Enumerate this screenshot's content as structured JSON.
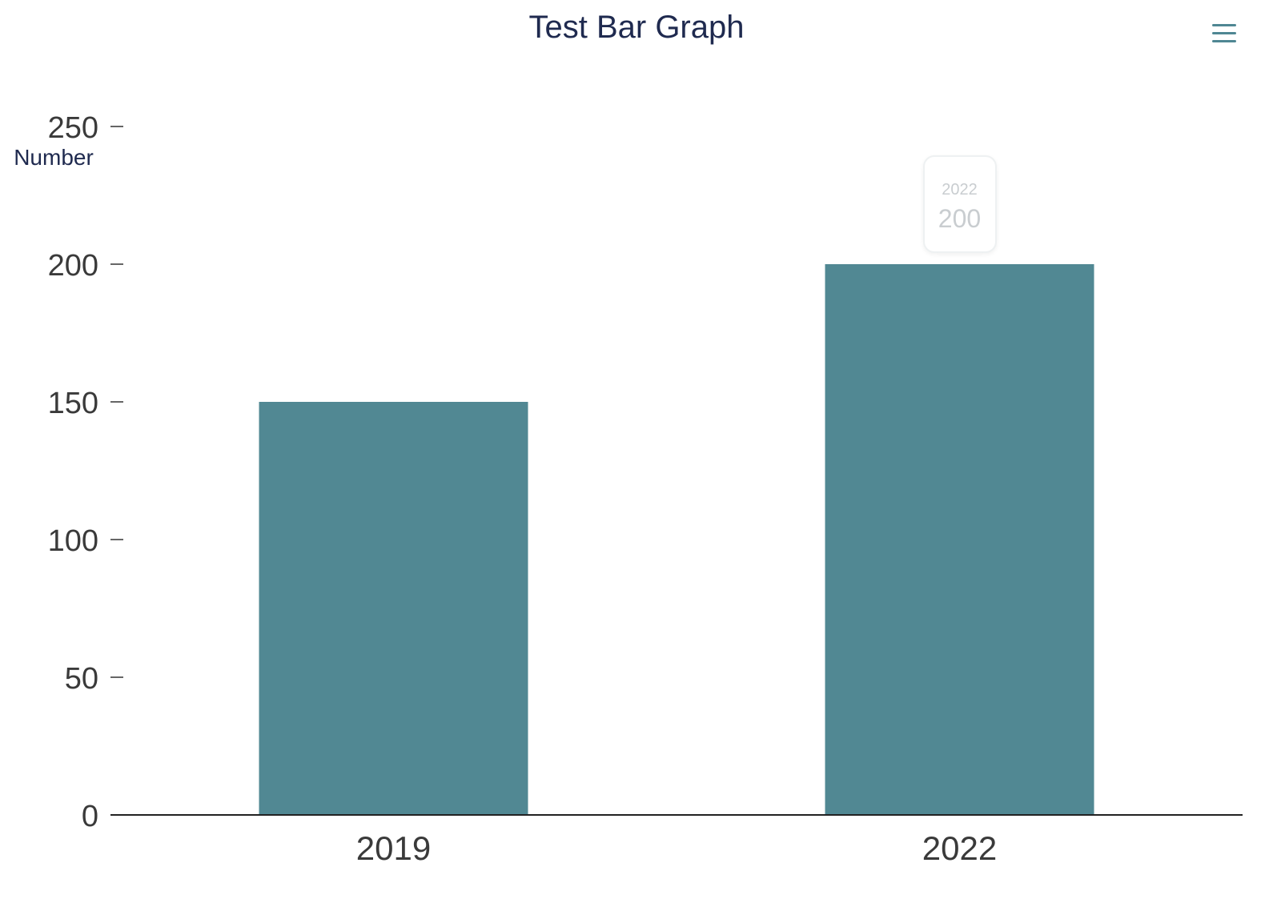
{
  "colors": {
    "bar": "#518893",
    "title": "#1f2a4f",
    "axis_text": "#3a3a3a",
    "ylabel": "#1f2a4f",
    "menu_icon": "#4f8793"
  },
  "menu": {
    "icon": "hamburger-menu-icon"
  },
  "tooltip": {
    "category": "2022",
    "value": "200"
  },
  "chart_data": {
    "type": "bar",
    "title": "Test Bar Graph",
    "xlabel": "",
    "ylabel": "Number",
    "categories": [
      "2019",
      "2022"
    ],
    "values": [
      150,
      200
    ],
    "ylim": [
      0,
      250
    ],
    "yticks": [
      0,
      50,
      100,
      150,
      200,
      250
    ],
    "grid": false,
    "legend": "none"
  }
}
